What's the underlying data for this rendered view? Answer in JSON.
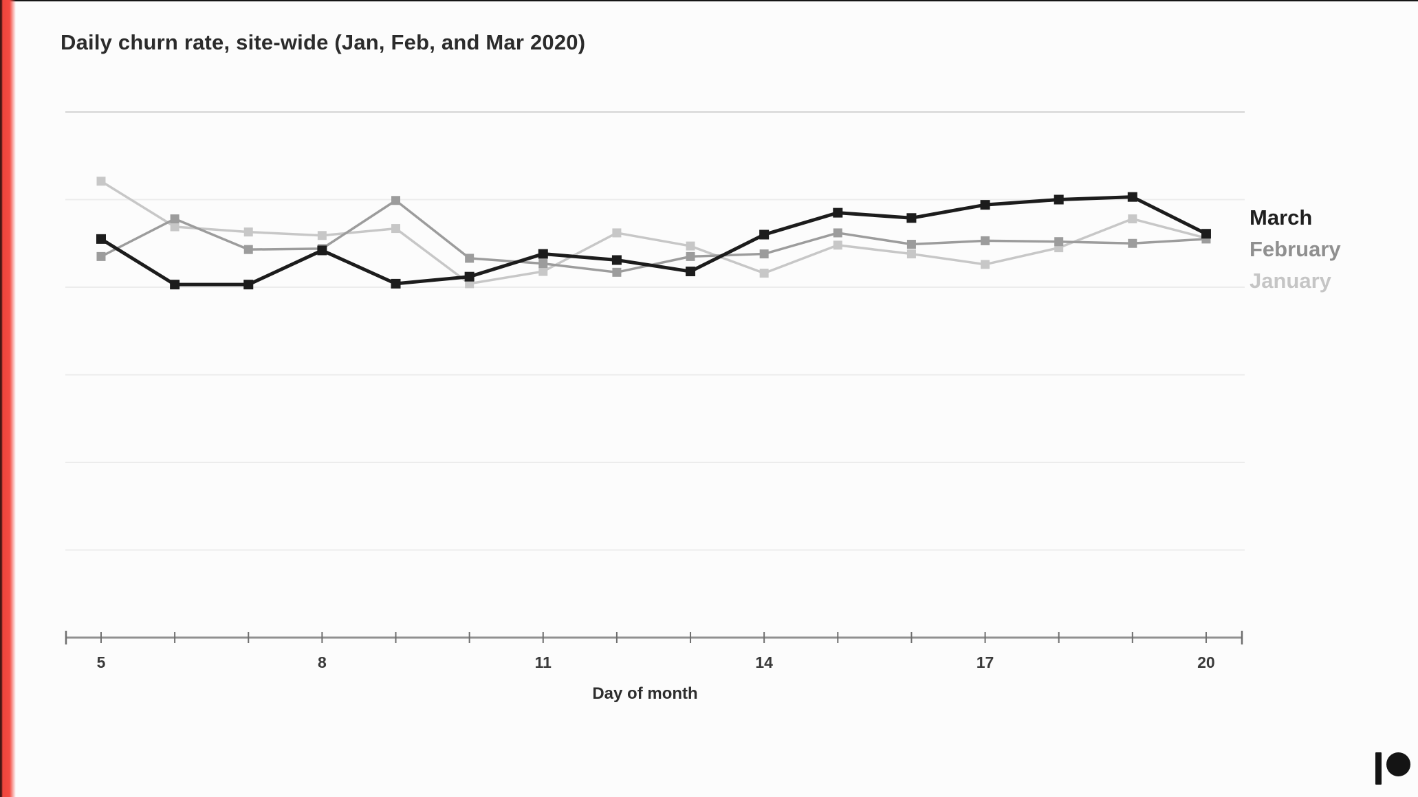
{
  "page": {
    "title": "Daily churn rate, site-wide (Jan, Feb, and Mar 2020)"
  },
  "chart_data": {
    "type": "line",
    "title": "Daily churn rate, site-wide (Jan, Feb, and Mar 2020)",
    "xlabel": "Day of month",
    "ylabel": "",
    "x": [
      5,
      6,
      7,
      8,
      9,
      10,
      11,
      12,
      13,
      14,
      15,
      16,
      17,
      18,
      19,
      20
    ],
    "x_ticks": [
      {
        "day": 5,
        "label": "5"
      },
      {
        "day": 8,
        "label": "8"
      },
      {
        "day": 11,
        "label": "11"
      },
      {
        "day": 14,
        "label": "14"
      },
      {
        "day": 17,
        "label": "17"
      },
      {
        "day": 20,
        "label": "20"
      }
    ],
    "y_axis": {
      "labeled": false,
      "unit": "relative churn-rate units (1.0 = one horizontal gridline spacing above the baseline; source chart shows no y tick labels)",
      "ylim": [
        0,
        6.3
      ],
      "gridlines_at": [
        1,
        2,
        3,
        4,
        5,
        6
      ]
    },
    "grid": "horizontal-only",
    "legend_position": "right of line ends",
    "series": [
      {
        "name": "January",
        "color": "#c7c7c7",
        "line_width": 3.5,
        "marker": "square",
        "values": [
          5.21,
          4.69,
          4.63,
          4.59,
          4.67,
          4.04,
          4.18,
          4.62,
          4.47,
          4.16,
          4.48,
          4.38,
          4.26,
          4.45,
          4.78,
          4.56
        ]
      },
      {
        "name": "February",
        "color": "#9c9c9c",
        "line_width": 3.5,
        "marker": "square",
        "values": [
          4.35,
          4.78,
          4.43,
          4.44,
          4.99,
          4.33,
          4.27,
          4.17,
          4.35,
          4.38,
          4.62,
          4.49,
          4.53,
          4.52,
          4.5,
          4.55
        ]
      },
      {
        "name": "March",
        "color": "#1c1c1c",
        "line_width": 5,
        "marker": "square",
        "values": [
          4.55,
          4.03,
          4.03,
          4.42,
          4.04,
          4.12,
          4.38,
          4.31,
          4.18,
          4.6,
          4.85,
          4.79,
          4.94,
          5.0,
          5.03,
          4.61
        ]
      }
    ]
  },
  "legend": {
    "items": [
      {
        "label": "March",
        "color": "#1f1f1f"
      },
      {
        "label": "February",
        "color": "#8f8f8f"
      },
      {
        "label": "January",
        "color": "#c5c5c5"
      }
    ]
  },
  "axis": {
    "xlabel": "Day of month"
  },
  "branding": {
    "logo": "patreon-logo-icon",
    "logo_color": "#141414"
  },
  "colors": {
    "background": "#fcfcfc",
    "accent_bar_red": "#f54b42",
    "top_line": "#161616",
    "title_text": "#2b2b2b",
    "axis_line": "#909090",
    "tick_text": "#3a3a3a",
    "gridline_strong": "#d4d4d4",
    "gridline_faint": "#ececec"
  }
}
